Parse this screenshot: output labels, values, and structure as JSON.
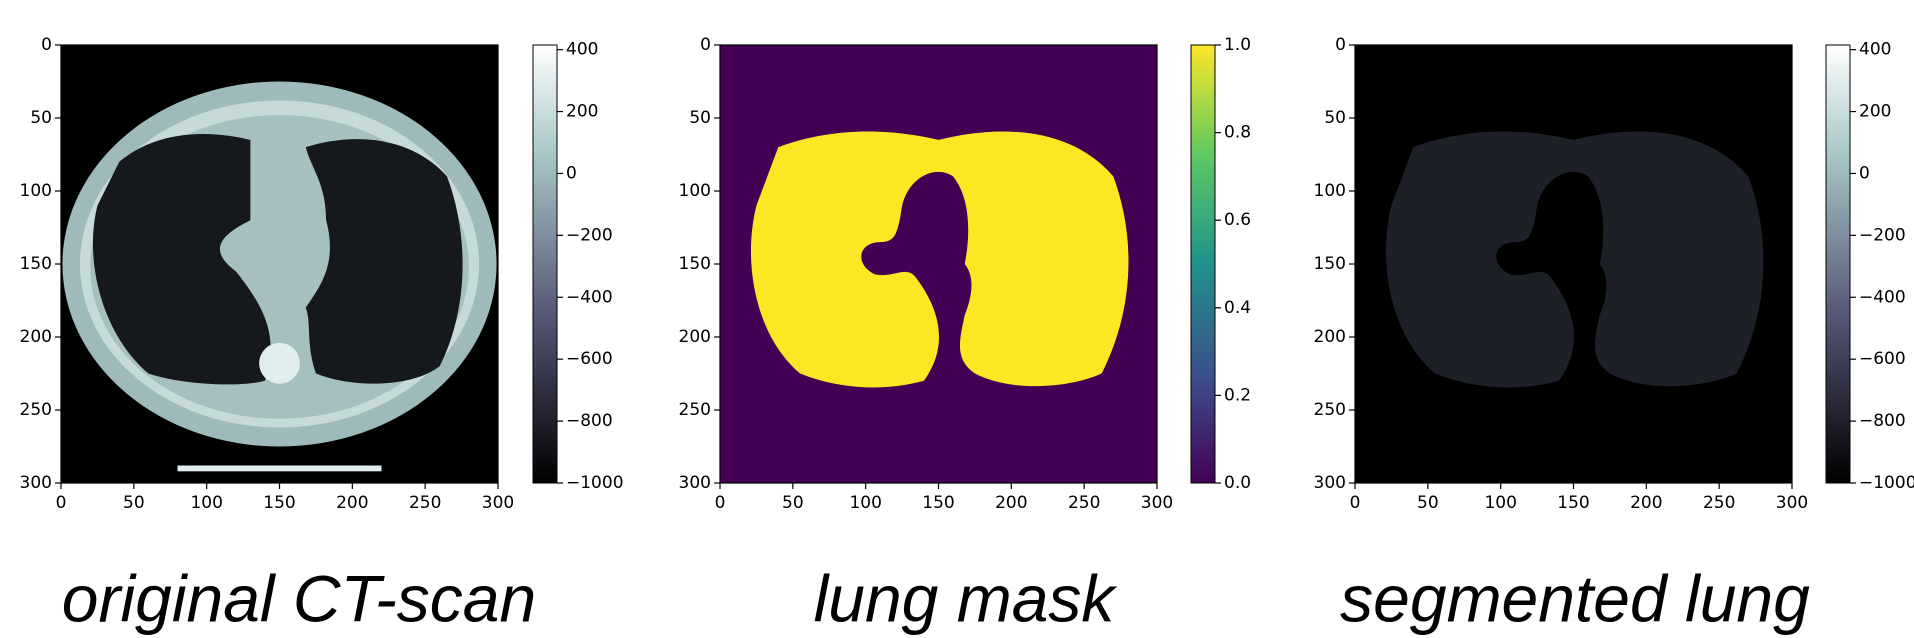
{
  "chart_data": [
    {
      "type": "image",
      "caption": "original CT-scan",
      "cmap": "bone",
      "xlim": [
        0,
        300
      ],
      "xticks": [
        0,
        50,
        100,
        150,
        200,
        250,
        300
      ],
      "ylim": [
        300,
        0
      ],
      "yticks": [
        0,
        50,
        100,
        150,
        200,
        250,
        300
      ],
      "clim": [
        -1000,
        415
      ],
      "cticks": [
        400,
        200,
        0,
        {
          "value": -200,
          "label": "−200"
        },
        {
          "value": -400,
          "label": "−400"
        },
        {
          "value": -600,
          "label": "−600"
        },
        {
          "value": -800,
          "label": "−800"
        },
        {
          "value": -1000,
          "label": "−1000"
        }
      ]
    },
    {
      "type": "image",
      "caption": "lung mask",
      "cmap": "viridis",
      "xlim": [
        0,
        300
      ],
      "xticks": [
        0,
        50,
        100,
        150,
        200,
        250,
        300
      ],
      "ylim": [
        300,
        0
      ],
      "yticks": [
        0,
        50,
        100,
        150,
        200,
        250,
        300
      ],
      "clim": [
        0,
        1
      ],
      "cticks": [
        {
          "value": 1,
          "label": "1.0"
        },
        0.8,
        0.6,
        0.4,
        0.2,
        {
          "value": 0,
          "label": "0.0"
        }
      ]
    },
    {
      "type": "image",
      "caption": "segmented lung",
      "cmap": "bone",
      "xlim": [
        0,
        300
      ],
      "xticks": [
        0,
        50,
        100,
        150,
        200,
        250,
        300
      ],
      "ylim": [
        300,
        0
      ],
      "yticks": [
        0,
        50,
        100,
        150,
        200,
        250,
        300
      ],
      "clim": [
        -1000,
        415
      ],
      "cticks": [
        400,
        200,
        0,
        {
          "value": -200,
          "label": "−200"
        },
        {
          "value": -400,
          "label": "−400"
        },
        {
          "value": -600,
          "label": "−600"
        },
        {
          "value": -800,
          "label": "−800"
        },
        {
          "value": -1000,
          "label": "−1000"
        }
      ]
    }
  ]
}
